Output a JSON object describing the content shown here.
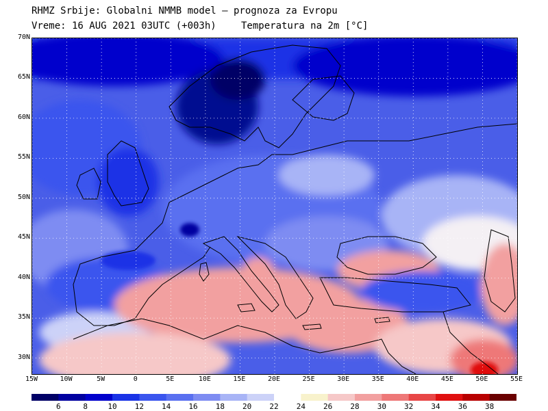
{
  "header": {
    "line1": "RHMZ Srbije: Globalni NMMB model — prognoza za Evropu",
    "line2": "Vreme: 16 AUG 2021 03UTC (+003h)",
    "line3": "Temperatura na 2m [°C]"
  },
  "map": {
    "lat_range": [
      28,
      70
    ],
    "lon_range": [
      -15,
      55
    ],
    "lat_labels": [
      "70N",
      "65N",
      "60N",
      "55N",
      "50N",
      "45N",
      "40N",
      "35N",
      "30N"
    ],
    "lat_values": [
      70,
      65,
      60,
      55,
      50,
      45,
      40,
      35,
      30
    ],
    "lon_labels": [
      "15W",
      "10W",
      "5W",
      "0",
      "5E",
      "10E",
      "15E",
      "20E",
      "25E",
      "30E",
      "35E",
      "40E",
      "45E",
      "50E",
      "55E"
    ],
    "lon_values": [
      -15,
      -10,
      -5,
      0,
      5,
      10,
      15,
      20,
      25,
      30,
      35,
      40,
      45,
      50,
      55
    ],
    "grid": "dotted"
  },
  "colorbar": {
    "labels": [
      "6",
      "8",
      "10",
      "12",
      "14",
      "16",
      "18",
      "20",
      "22",
      "24",
      "26",
      "28",
      "30",
      "32",
      "34",
      "36",
      "38"
    ],
    "colors": [
      "#000066",
      "#0000a0",
      "#0000cc",
      "#1a33e6",
      "#3a55ee",
      "#5a70f0",
      "#7e8cf2",
      "#a8b4f6",
      "#ccd2f8",
      "#ffffff",
      "#f8f2cc",
      "#f6c8c8",
      "#f2a0a0",
      "#ee7878",
      "#e84646",
      "#e01010",
      "#b80000",
      "#6a0000"
    ]
  }
}
